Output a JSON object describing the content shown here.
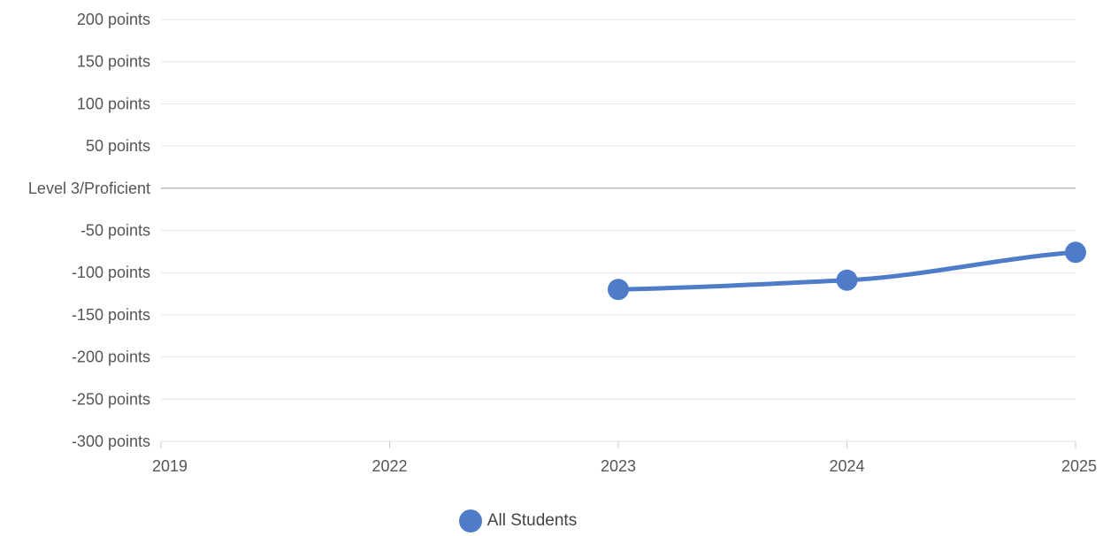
{
  "chart_data": {
    "type": "line",
    "x": [
      "2019",
      "2022",
      "2023",
      "2024",
      "2025"
    ],
    "y_ticks": [
      {
        "value": 200,
        "label": "200 points"
      },
      {
        "value": 150,
        "label": "150 points"
      },
      {
        "value": 100,
        "label": "100 points"
      },
      {
        "value": 50,
        "label": "50 points"
      },
      {
        "value": 0,
        "label": "Level 3/Proficient"
      },
      {
        "value": -50,
        "label": "-50 points"
      },
      {
        "value": -100,
        "label": "-100 points"
      },
      {
        "value": -150,
        "label": "-150 points"
      },
      {
        "value": -200,
        "label": "-200 points"
      },
      {
        "value": -250,
        "label": "-250 points"
      },
      {
        "value": -300,
        "label": "-300 points"
      }
    ],
    "ylim": [
      -300,
      200
    ],
    "grid": true,
    "legend_position": "bottom-center",
    "series": [
      {
        "name": "All Students",
        "color": "#4f7cc8",
        "values": [
          null,
          null,
          -120,
          -109,
          -76
        ]
      }
    ]
  }
}
